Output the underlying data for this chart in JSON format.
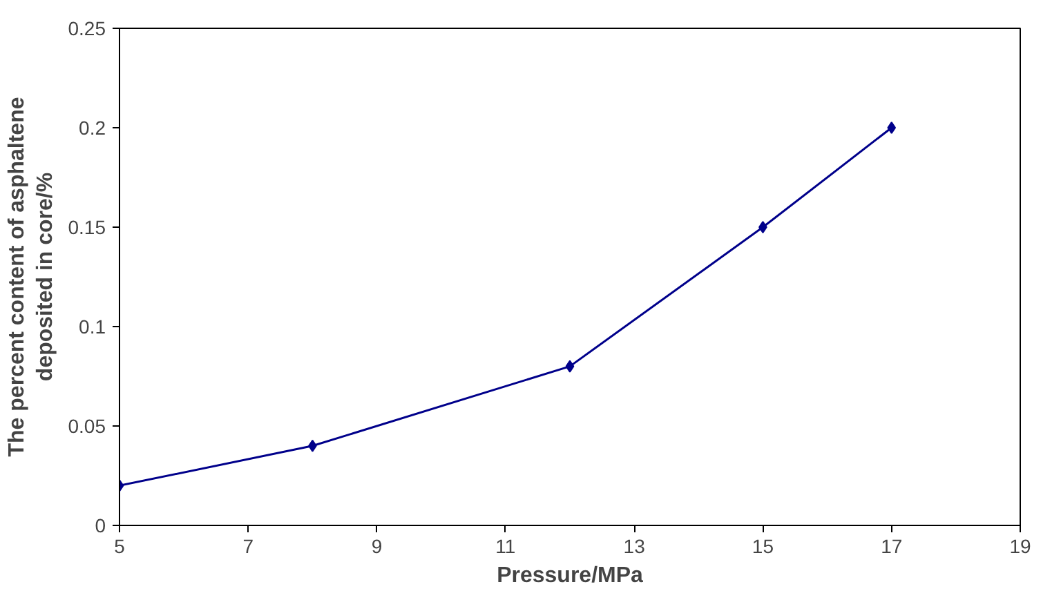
{
  "chart_data": {
    "type": "line",
    "xlabel": "Pressure/MPa",
    "ylabel": "The percent content of asphaltene\ndeposited in core/%",
    "x": [
      5,
      8,
      12,
      15,
      17
    ],
    "series": [
      {
        "color": "#00008b",
        "values": [
          0.02,
          0.04,
          0.08,
          0.15,
          0.2
        ]
      }
    ],
    "xlim": [
      5,
      19
    ],
    "xticks": [
      5,
      7,
      9,
      11,
      13,
      15,
      17,
      19
    ],
    "ylim": [
      0,
      0.25
    ],
    "yticks": [
      0,
      0.05,
      0.1,
      0.15,
      0.2,
      0.25
    ],
    "marker": "diamond",
    "line_style": "solid"
  }
}
